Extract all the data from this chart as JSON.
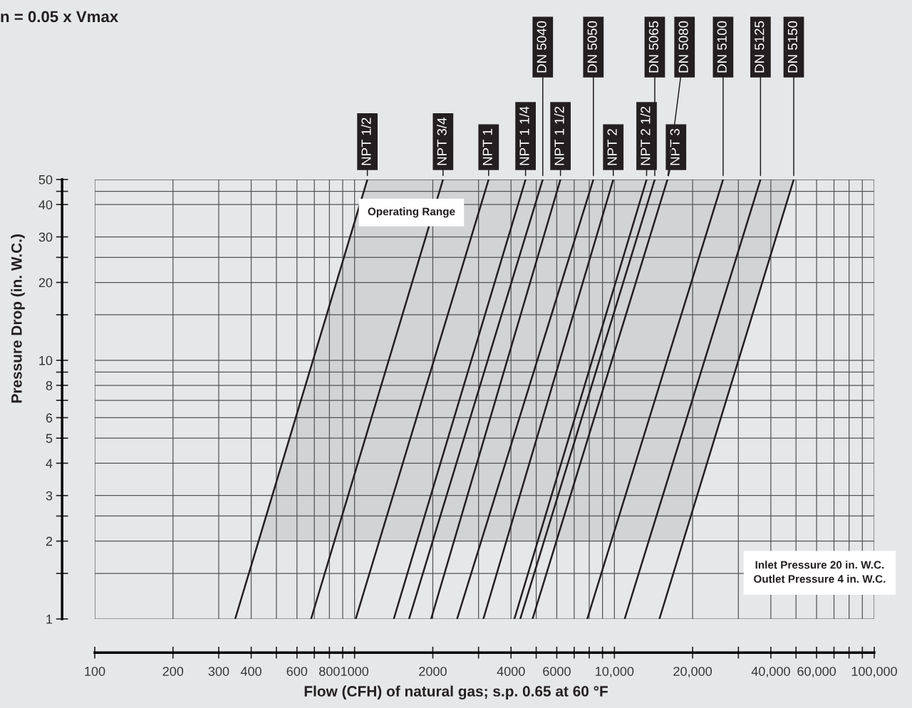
{
  "chart_data": {
    "type": "line",
    "title": "n = 0.05 x Vmax",
    "xlabel": "Flow (CFH) of natural gas; s.p. 0.65 at 60 °F",
    "ylabel": "Pressure Drop (in. W.C.)",
    "log": "xy",
    "grid": true,
    "legend": false,
    "marker": "none",
    "line_style": "solid",
    "xlim": [
      100,
      100000
    ],
    "ylim": [
      1,
      50
    ],
    "xticks": [
      100,
      200,
      300,
      400,
      {
        "value": 500,
        "label": null
      },
      600,
      {
        "value": 700,
        "label": null
      },
      800,
      {
        "value": 900,
        "label": null
      },
      1000,
      2000,
      {
        "value": 3000,
        "label": null
      },
      4000,
      {
        "value": 5000,
        "label": null
      },
      6000,
      {
        "value": 7000,
        "label": null
      },
      {
        "value": 8000,
        "label": null
      },
      {
        "value": 9000,
        "label": null
      },
      {
        "value": 10000,
        "label": "10,000"
      },
      {
        "value": 20000,
        "label": "20,000"
      },
      {
        "value": 30000,
        "label": null
      },
      {
        "value": 40000,
        "label": "40,000"
      },
      {
        "value": 50000,
        "label": null
      },
      {
        "value": 60000,
        "label": "60,000"
      },
      {
        "value": 70000,
        "label": null
      },
      {
        "value": 80000,
        "label": null
      },
      {
        "value": 90000,
        "label": null
      },
      {
        "value": 100000,
        "label": "100,000"
      }
    ],
    "yticks": [
      1,
      {
        "value": 1.5,
        "label": null
      },
      2,
      {
        "value": 2.5,
        "label": null
      },
      3,
      4,
      5,
      6,
      {
        "value": 7,
        "label": null
      },
      8,
      {
        "value": 9,
        "label": null
      },
      10,
      {
        "value": 15,
        "label": null
      },
      20,
      {
        "value": 25,
        "label": null
      },
      30,
      40,
      {
        "value": 45,
        "label": null
      },
      50
    ],
    "series": [
      {
        "color": "#231f20",
        "x": [
          347,
          1120
        ],
        "values": [
          1,
          50
        ]
      },
      {
        "color": "#231f20",
        "x": [
          680,
          2190
        ],
        "values": [
          1,
          50
        ]
      },
      {
        "color": "#231f20",
        "x": [
          1010,
          3280
        ],
        "values": [
          1,
          50
        ]
      },
      {
        "color": "#231f20",
        "x": [
          1415,
          4550
        ],
        "values": [
          1,
          50
        ]
      },
      {
        "color": "#231f20",
        "x": [
          1620,
          5300
        ],
        "values": [
          1,
          50
        ]
      },
      {
        "color": "#231f20",
        "x": [
          1970,
          6200
        ],
        "values": [
          1,
          50
        ]
      },
      {
        "color": "#231f20",
        "x": [
          2480,
          8300
        ],
        "values": [
          1,
          50
        ]
      },
      {
        "color": "#231f20",
        "x": [
          3130,
          9900
        ],
        "values": [
          1,
          50
        ]
      },
      {
        "color": "#231f20",
        "x": [
          4120,
          13300
        ],
        "values": [
          1,
          50
        ]
      },
      {
        "color": "#231f20",
        "x": [
          4340,
          14300
        ],
        "values": [
          1,
          50
        ]
      },
      {
        "color": "#231f20",
        "x": [
          4840,
          16000
        ],
        "values": [
          1,
          50
        ]
      },
      {
        "color": "#231f20",
        "x": [
          7860,
          26200
        ],
        "values": [
          1,
          50
        ]
      },
      {
        "color": "#231f20",
        "x": [
          10950,
          36500
        ],
        "values": [
          1,
          50
        ]
      },
      {
        "color": "#231f20",
        "x": [
          14900,
          49000
        ],
        "values": [
          1,
          50
        ]
      }
    ],
    "bands": [
      {
        "axis": "y",
        "from": 2,
        "to": 50,
        "label": "Operating Range",
        "color": "#d2d3d5"
      }
    ],
    "annotations": [
      {
        "text": "NPT 1/2",
        "x": 1120,
        "y": 50
      },
      {
        "text": "NPT 3/4",
        "x": 2190,
        "y": 50
      },
      {
        "text": "NPT 1",
        "x": 3280,
        "y": 50
      },
      {
        "text": "NPT 1 1/4",
        "x": 4550,
        "y": 50
      },
      {
        "text": "NPT 1 1/2",
        "x": 6200,
        "y": 50
      },
      {
        "text": "NPT 2",
        "x": 9900,
        "y": 50
      },
      {
        "text": "NPT 2 1/2",
        "x": 13300,
        "y": 50
      },
      {
        "text": "NPT 3",
        "x": 16000,
        "y": 50
      },
      {
        "text": "DN 5040",
        "x": 5300,
        "y": 50
      },
      {
        "text": "DN 5050",
        "x": 8300,
        "y": 50
      },
      {
        "text": "DN 5065",
        "x": 14300,
        "y": 50
      },
      {
        "text": "DN 5080",
        "x": 16000,
        "y": 50
      },
      {
        "text": "DN 5100",
        "x": 26200,
        "y": 50
      },
      {
        "text": "DN 5125",
        "x": 36500,
        "y": 50
      },
      {
        "text": "DN 5150",
        "x": 49000,
        "y": 50
      },
      "Inlet Pressure 20 in. W.C.\nOutlet Pressure 4 in. W.C."
    ]
  }
}
